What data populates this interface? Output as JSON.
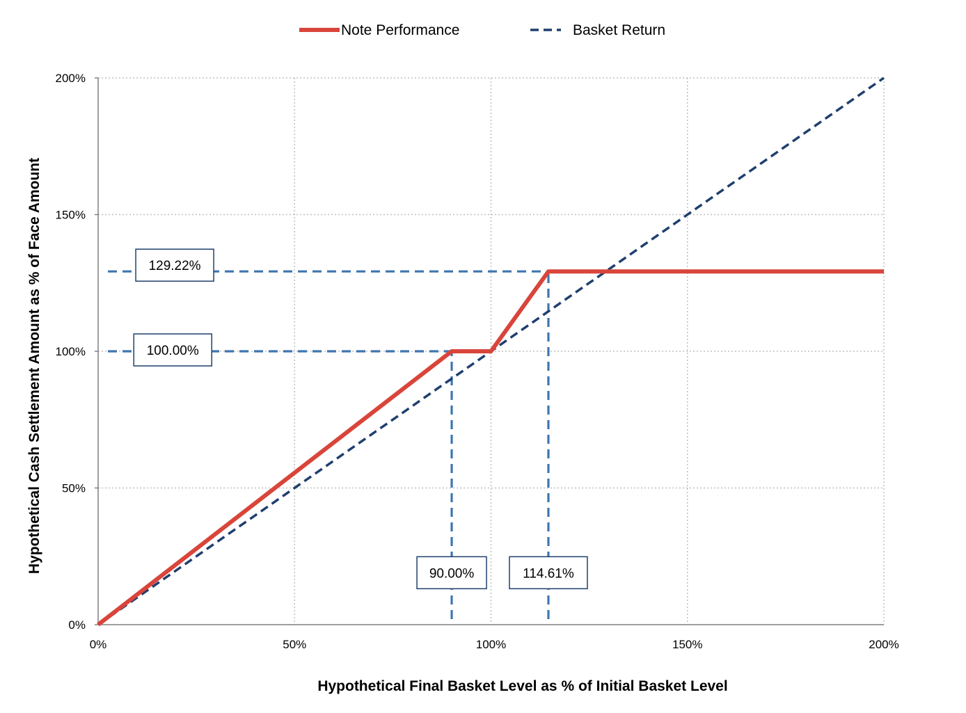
{
  "chart_data": {
    "type": "line",
    "xlabel": "Hypothetical Final Basket Level as % of Initial Basket Level",
    "ylabel": "Hypothetical Cash Settlement Amount as % of Face Amount",
    "xlim": [
      0,
      200
    ],
    "ylim": [
      0,
      200
    ],
    "x_ticks": [
      0,
      50,
      100,
      150,
      200
    ],
    "y_ticks": [
      0,
      50,
      100,
      150,
      200
    ],
    "x_tick_labels": [
      "0%",
      "50%",
      "100%",
      "150%",
      "200%"
    ],
    "y_tick_labels": [
      "0%",
      "50%",
      "100%",
      "150%",
      "200%"
    ],
    "grid": true,
    "legend_position": "top-center",
    "series": [
      {
        "name": "Note Performance",
        "color": "#d9453a",
        "style": "solid",
        "x": [
          0,
          90,
          100,
          114.61,
          200
        ],
        "y": [
          0,
          100,
          100,
          129.22,
          129.22
        ]
      },
      {
        "name": "Basket Return",
        "color": "#1f3f6e",
        "style": "dashed",
        "x": [
          0,
          200
        ],
        "y": [
          0,
          200
        ]
      }
    ],
    "reference_lines": {
      "color": "#3f75b0",
      "horizontal": [
        {
          "y": 129.22,
          "x_from": 0,
          "x_to": 132
        },
        {
          "y": 100,
          "x_from": 0,
          "x_to": 90
        }
      ],
      "vertical": [
        {
          "x": 90,
          "y_from": 0,
          "y_to": 100
        },
        {
          "x": 114.61,
          "y_from": 0,
          "y_to": 129.22
        }
      ]
    },
    "annotations": [
      {
        "text": "129.22%",
        "x": 19.5,
        "y": 131.5
      },
      {
        "text": "100.00%",
        "x": 19,
        "y": 100.5
      },
      {
        "text": "90.00%",
        "x": 90,
        "y": 19
      },
      {
        "text": "114.61%",
        "x": 114.61,
        "y": 19
      }
    ]
  }
}
